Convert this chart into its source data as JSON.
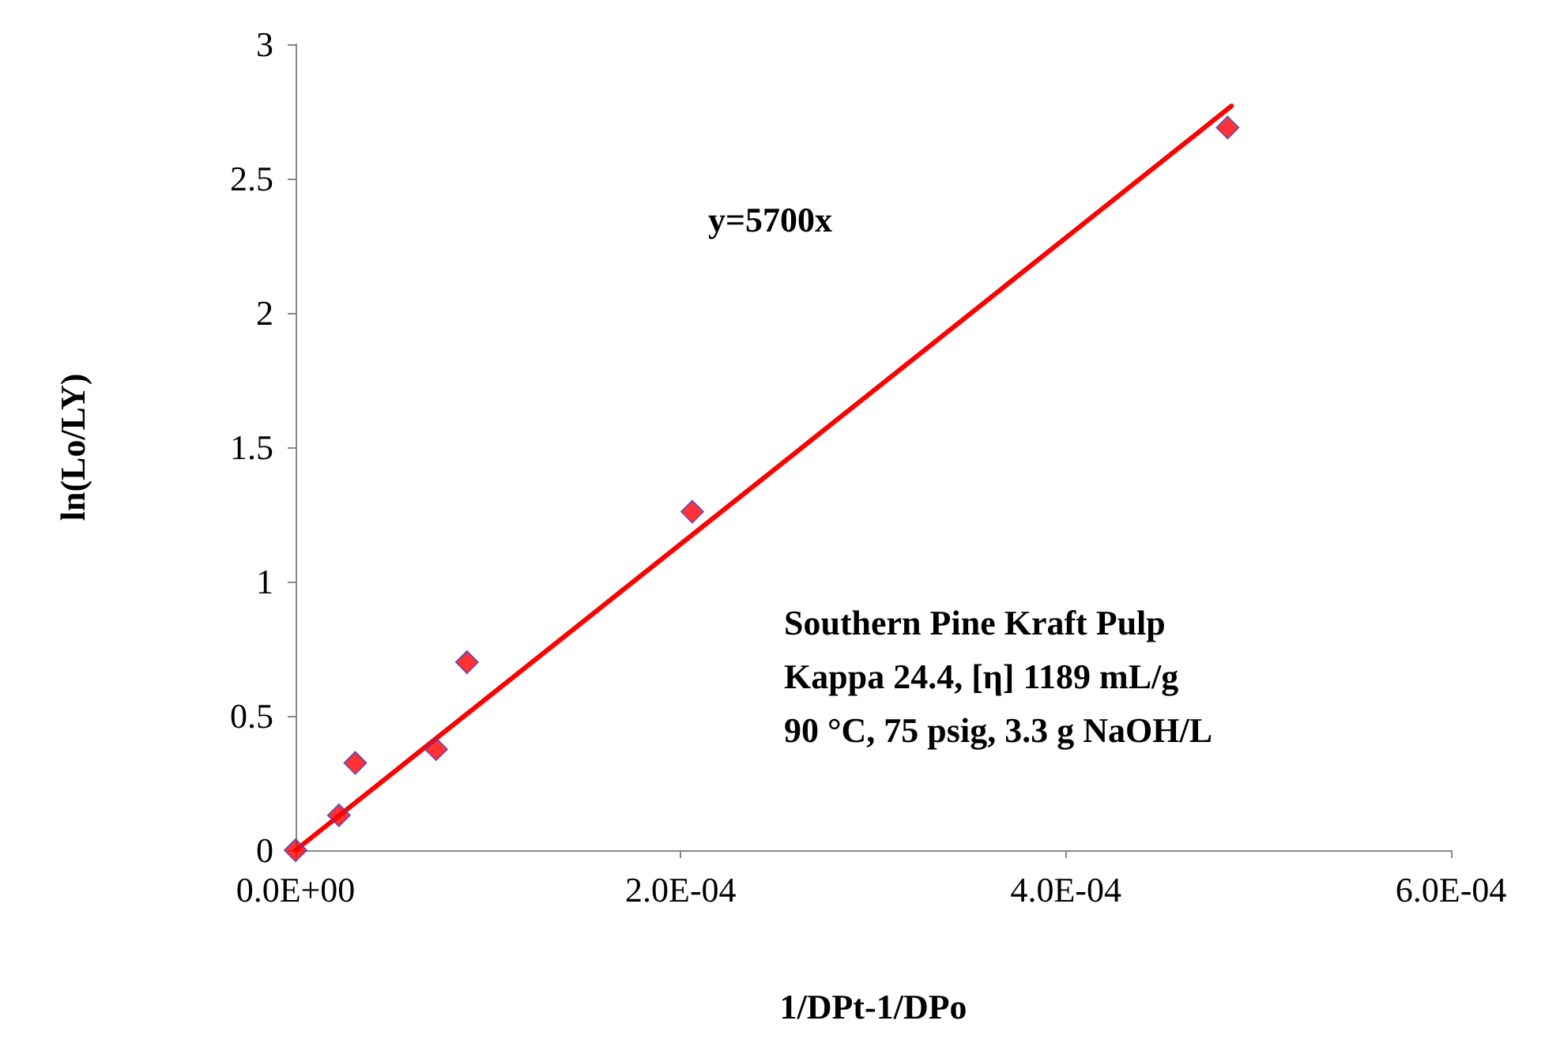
{
  "chart_data": {
    "type": "scatter",
    "xlabel": "1/DPt-1/DPo",
    "ylabel": "ln(Lo/LY)",
    "xlim": [
      0,
      0.0006
    ],
    "xticks": [
      {
        "value": 0,
        "label": "0.0E+00"
      },
      {
        "value": 0.0002,
        "label": "2.0E-04"
      },
      {
        "value": 0.0004,
        "label": "4.0E-04"
      },
      {
        "value": 0.0006,
        "label": "6.0E-04"
      }
    ],
    "ylim": [
      0,
      3
    ],
    "yticks": [
      0,
      0.5,
      1,
      1.5,
      2,
      2.5,
      3
    ],
    "grid": false,
    "series": [
      {
        "color": "#ff0000",
        "marker": "diamond",
        "x": [
          0,
          2.25e-05,
          3.1e-05,
          7.3e-05,
          8.9e-05,
          0.000206,
          0.000484
        ],
        "values": [
          0,
          0.13,
          0.325,
          0.376,
          0.7,
          1.26,
          2.69
        ]
      },
      {
        "type": "line",
        "color": "#ff0000",
        "marker": "none",
        "line_style": "solid",
        "x": [
          0,
          0.000486
        ],
        "values": [
          0,
          2.77
        ]
      }
    ],
    "annotations": [
      "y=5700x",
      "Southern Pine Kraft Pulp",
      "Kappa 24.4, [η] 1189 mL/g",
      "90 °C, 75 psig, 3.3 g NaOH/L"
    ]
  }
}
